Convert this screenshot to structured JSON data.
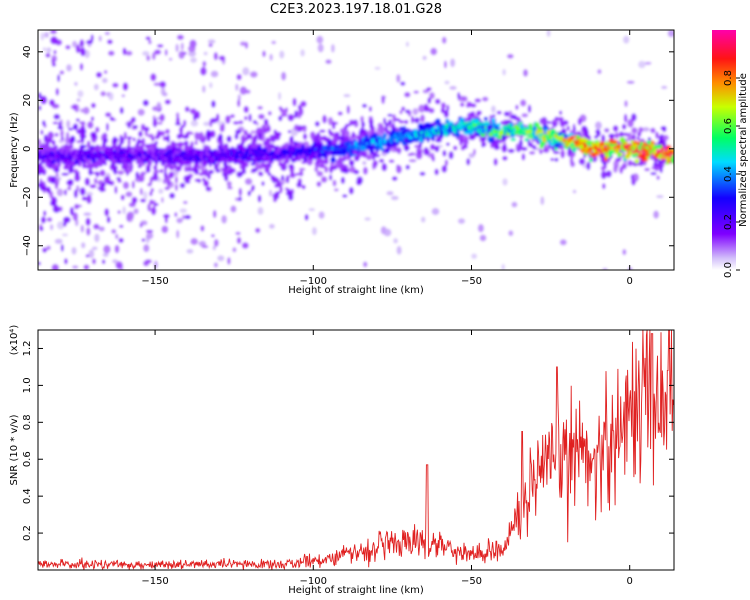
{
  "chart_data": [
    {
      "type": "heatmap",
      "title": "C2E3.2023.197.18.01.G28",
      "xlabel": "Height of straight line (km)",
      "ylabel": "Frequency (Hz)",
      "xlim": [
        -187,
        14
      ],
      "ylim": [
        -50,
        49
      ],
      "xticks": [
        -150,
        -100,
        -50,
        0
      ],
      "yticks": [
        -40,
        -20,
        0,
        20,
        40
      ],
      "colorbar": {
        "label": "Normalized spectral amplitude",
        "ticks": [
          0.0,
          0.2,
          0.4,
          0.6,
          0.8
        ],
        "range": [
          0,
          1
        ],
        "colors": [
          "#ffffff",
          "#7f00ff",
          "#0000ff",
          "#00ffff",
          "#00ff00",
          "#ffff00",
          "#ff8000",
          "#ff0000",
          "#ff00aa"
        ]
      },
      "ridge": {
        "description_points": [
          {
            "x": -187,
            "y": -3
          },
          {
            "x": -130,
            "y": -3
          },
          {
            "x": -110,
            "y": -2
          },
          {
            "x": -90,
            "y": 0
          },
          {
            "x": -75,
            "y": 4
          },
          {
            "x": -60,
            "y": 8
          },
          {
            "x": -48,
            "y": 10
          },
          {
            "x": -42,
            "y": 6
          },
          {
            "x": -35,
            "y": 8
          },
          {
            "x": -25,
            "y": 5
          },
          {
            "x": -10,
            "y": 0
          },
          {
            "x": 0,
            "y": 0
          },
          {
            "x": 14,
            "y": -2
          }
        ],
        "amplitude_points": [
          {
            "x": -187,
            "a": 0.25
          },
          {
            "x": -110,
            "a": 0.3
          },
          {
            "x": -80,
            "a": 0.45
          },
          {
            "x": -50,
            "a": 0.55
          },
          {
            "x": -35,
            "a": 0.7
          },
          {
            "x": -20,
            "a": 0.75
          },
          {
            "x": -10,
            "a": 0.95
          },
          {
            "x": 14,
            "a": 0.95
          }
        ]
      }
    },
    {
      "type": "line",
      "xlabel": "Height of straight line (km)",
      "ylabel": "SNR (10 * v/v)",
      "yunit": "(x10⁴)",
      "xlim": [
        -187,
        14
      ],
      "ylim": [
        0,
        1.3
      ],
      "xticks": [
        -150,
        -100,
        -50,
        0
      ],
      "yticks": [
        0.2,
        0.4,
        0.6,
        0.8,
        1.0,
        1.2
      ],
      "color": "#e02020",
      "series": [
        {
          "trend_points": [
            {
              "x": -187,
              "y": 0.03
            },
            {
              "x": -110,
              "y": 0.03
            },
            {
              "x": -100,
              "y": 0.05
            },
            {
              "x": -85,
              "y": 0.1
            },
            {
              "x": -70,
              "y": 0.16
            },
            {
              "x": -60,
              "y": 0.14
            },
            {
              "x": -50,
              "y": 0.08
            },
            {
              "x": -40,
              "y": 0.12
            },
            {
              "x": -35,
              "y": 0.3
            },
            {
              "x": -30,
              "y": 0.45
            },
            {
              "x": -20,
              "y": 0.65
            },
            {
              "x": -10,
              "y": 0.62
            },
            {
              "x": 0,
              "y": 0.85
            },
            {
              "x": 5,
              "y": 1.0
            },
            {
              "x": 14,
              "y": 0.95
            }
          ],
          "peaks": [
            {
              "x": -64,
              "y": 0.57
            },
            {
              "x": -34,
              "y": 0.75
            },
            {
              "x": -23,
              "y": 1.1
            },
            {
              "x": 7,
              "y": 1.28
            },
            {
              "x": 12,
              "y": 1.08
            }
          ]
        }
      ]
    }
  ]
}
